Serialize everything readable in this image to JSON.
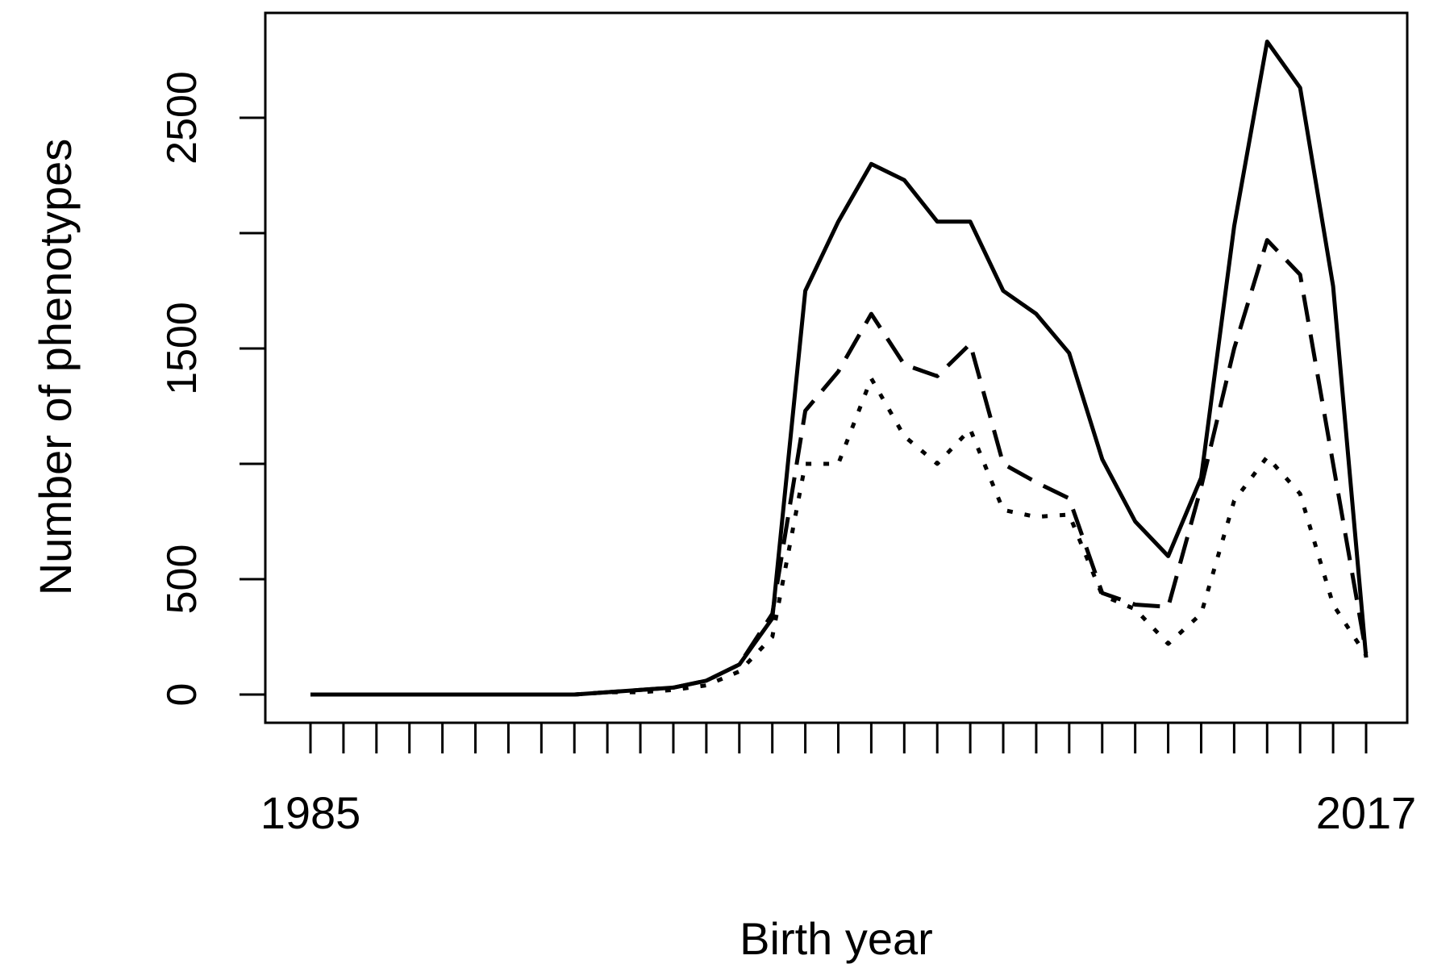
{
  "chart_data": {
    "type": "line",
    "title": "",
    "xlabel": "Birth year",
    "ylabel": "Number of phenotypes",
    "xlim": [
      1985,
      2017
    ],
    "ylim": [
      0,
      2500
    ],
    "x_tick_labels": [
      {
        "x": 1985,
        "label": "1985"
      },
      {
        "x": 2017,
        "label": "2017"
      }
    ],
    "y_ticks": [
      {
        "y": 0,
        "label": "0"
      },
      {
        "y": 500,
        "label": "500"
      },
      {
        "y": 1000,
        "label": ""
      },
      {
        "y": 1500,
        "label": "1500"
      },
      {
        "y": 2000,
        "label": ""
      },
      {
        "y": 2500,
        "label": "2500"
      }
    ],
    "grid": false,
    "legend": "none",
    "series": [
      {
        "line_style": "solid",
        "x": [
          1985,
          1986,
          1988,
          1989,
          1990,
          1991,
          1992,
          1993,
          1994,
          1995,
          1996,
          1997,
          1998,
          1999,
          2000,
          2001,
          2002,
          2003,
          2004,
          2005,
          2006,
          2007,
          2008,
          2009,
          2010,
          2011,
          2012,
          2013,
          2014,
          2015,
          2016,
          2017
        ],
        "y": [
          0,
          0,
          0,
          0,
          0,
          0,
          0,
          0,
          10,
          20,
          30,
          60,
          130,
          330,
          1750,
          2050,
          2300,
          2230,
          2050,
          2050,
          1750,
          1650,
          1480,
          1020,
          750,
          600,
          940,
          2030,
          2830,
          2630,
          1770,
          160
        ]
      },
      {
        "line_style": "dashed",
        "x": [
          1985,
          1986,
          1988,
          1989,
          1990,
          1991,
          1992,
          1993,
          1994,
          1995,
          1996,
          1997,
          1998,
          1999,
          2000,
          2001,
          2002,
          2003,
          2004,
          2005,
          2006,
          2007,
          2008,
          2009,
          2010,
          2011,
          2012,
          2013,
          2014,
          2015,
          2016,
          2017
        ],
        "y": [
          0,
          0,
          0,
          0,
          0,
          0,
          0,
          0,
          10,
          20,
          30,
          60,
          130,
          350,
          1230,
          1400,
          1650,
          1430,
          1380,
          1520,
          1000,
          920,
          850,
          440,
          390,
          380,
          900,
          1500,
          1970,
          1820,
          1000,
          180
        ]
      },
      {
        "line_style": "dotted",
        "x": [
          1985,
          1986,
          1988,
          1989,
          1990,
          1991,
          1992,
          1993,
          1994,
          1995,
          1996,
          1997,
          1998,
          1999,
          2000,
          2001,
          2002,
          2003,
          2004,
          2005,
          2006,
          2007,
          2008,
          2009,
          2010,
          2011,
          2012,
          2013,
          2014,
          2015,
          2016,
          2017
        ],
        "y": [
          0,
          0,
          0,
          0,
          0,
          0,
          0,
          0,
          10,
          10,
          20,
          40,
          100,
          250,
          1000,
          1000,
          1370,
          1120,
          1000,
          1150,
          800,
          770,
          780,
          430,
          370,
          220,
          350,
          840,
          1030,
          870,
          390,
          170
        ]
      }
    ]
  }
}
